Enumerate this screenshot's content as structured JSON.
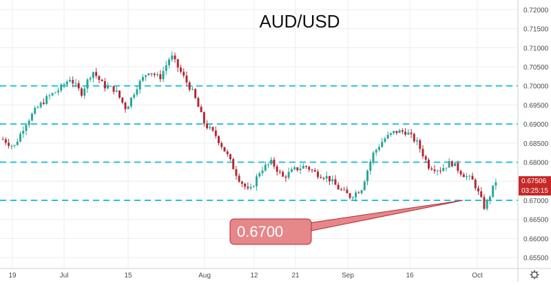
{
  "chart_data": {
    "type": "candlestick",
    "title": "AUD/USD",
    "x_ticks": [
      "19",
      "Jul",
      "15",
      "Aug",
      "12",
      "21",
      "Sep",
      "16",
      "Oct"
    ],
    "y_ticks": [
      "0.72000",
      "0.71500",
      "0.71000",
      "0.70500",
      "0.70000",
      "0.69500",
      "0.69000",
      "0.68500",
      "0.68000",
      "0.67500",
      "0.67000",
      "0.66500",
      "0.66000",
      "0.65500"
    ],
    "ylim": [
      0.6525,
      0.7225
    ],
    "grid": true,
    "last_price": "0.67506",
    "countdown": "03:25:15",
    "horizontal_levels": [
      0.7,
      0.69,
      0.68,
      0.67
    ],
    "annotation": {
      "text": "0.6700",
      "value": 0.67
    },
    "close_path": [
      0.686,
      0.684,
      0.69,
      0.694,
      0.697,
      0.699,
      0.702,
      0.698,
      0.704,
      0.7,
      0.699,
      0.694,
      0.7,
      0.704,
      0.702,
      0.708,
      0.703,
      0.698,
      0.69,
      0.687,
      0.682,
      0.676,
      0.672,
      0.678,
      0.68,
      0.676,
      0.678,
      0.679,
      0.677,
      0.676,
      0.673,
      0.671,
      0.673,
      0.682,
      0.686,
      0.688,
      0.688,
      0.685,
      0.679,
      0.678,
      0.68,
      0.677,
      0.675,
      0.668,
      0.675
    ],
    "colors": {
      "up": "#26a69a",
      "down": "#b22833",
      "level": "#2ac0d6",
      "annotation_fill": "#e6878a",
      "annotation_stroke": "#b22833",
      "price_badge": "#c62828",
      "grid": "#ececec"
    }
  },
  "ui": {
    "settings_icon": "gear-icon"
  }
}
